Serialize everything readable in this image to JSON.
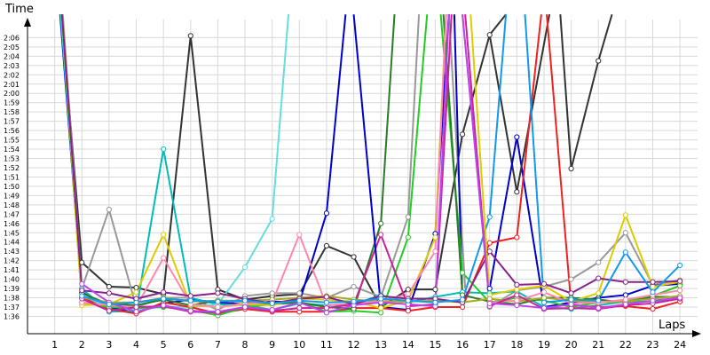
{
  "chart_data": {
    "type": "line",
    "title": "",
    "xlabel": "Laps",
    "ylabel": "Time",
    "x": [
      1,
      2,
      3,
      4,
      5,
      6,
      7,
      8,
      9,
      10,
      11,
      12,
      13,
      14,
      15,
      16,
      17,
      18,
      19,
      20,
      21,
      22,
      23,
      24
    ],
    "xlim": [
      0.0,
      24.2
    ],
    "ylim": [
      95.1,
      128.5
    ],
    "y_tick_labels": [
      "1:36",
      "1:37",
      "1:38",
      "1:39",
      "1:40",
      "1:41",
      "1:42",
      "1:43",
      "1:44",
      "1:45",
      "1:46",
      "1:47",
      "1:48",
      "1:49",
      "1:50",
      "1:51",
      "1:52",
      "1:53",
      "1:54",
      "1:55",
      "1:56",
      "1:57",
      "1:58",
      "1:59",
      "2:00",
      "2:01",
      "2:02",
      "2:03",
      "2:04",
      "2:05",
      "2:06"
    ],
    "y_tick_values": [
      96,
      97,
      98,
      99,
      100,
      101,
      102,
      103,
      104,
      105,
      106,
      107,
      108,
      109,
      110,
      111,
      112,
      113,
      114,
      115,
      116,
      117,
      118,
      119,
      120,
      121,
      122,
      123,
      124,
      125,
      126
    ],
    "x_tick_labels": [
      "1",
      "2",
      "3",
      "4",
      "5",
      "6",
      "7",
      "8",
      "9",
      "10",
      "11",
      "12",
      "13",
      "14",
      "15",
      "16",
      "17",
      "18",
      "19",
      "20",
      "21",
      "22",
      "23",
      "24"
    ],
    "series": [
      {
        "color": "#333333",
        "values": [
          null,
          101.8,
          99.2,
          99.1,
          98.4,
          126.2,
          98.9,
          97.8,
          98.2,
          98.4,
          103.6,
          102.4,
          97.0,
          98.9,
          98.9,
          115.6,
          126.3,
          109.4,
          null,
          111.9,
          123.5,
          null,
          null,
          null
        ]
      },
      {
        "color": "#999999",
        "values": [
          null,
          99.0,
          107.5,
          97.0,
          98.0,
          98.0,
          96.7,
          98.2,
          98.5,
          98.5,
          98.0,
          99.2,
          98.1,
          106.7,
          null,
          null,
          97.0,
          98.8,
          99.2,
          100.0,
          101.8,
          105.0,
          99.4,
          99.9
        ]
      },
      {
        "color": "#0000cc",
        "values": [
          null,
          98.6,
          97.0,
          96.4,
          97.4,
          97.8,
          97.5,
          97.3,
          97.6,
          97.5,
          107.1,
          null,
          97.0,
          96.7,
          104.9,
          null,
          99.0,
          115.3,
          97.0,
          97.5,
          98.0,
          98.3,
          99.3,
          99.5
        ]
      },
      {
        "color": "#00bbbb",
        "values": [
          null,
          99.0,
          96.5,
          96.6,
          114.0,
          98.0,
          97.3,
          97.2,
          96.7,
          97.4,
          97.2,
          97.3,
          98.3,
          97.5,
          98.1,
          98.6,
          98.5,
          98.7,
          97.0,
          96.8,
          97.2,
          97.6,
          97.6,
          98.0
        ]
      },
      {
        "color": "#66dddd",
        "values": [
          null,
          98.0,
          97.1,
          96.8,
          97.0,
          97.0,
          97.3,
          101.3,
          106.5,
          null,
          null,
          null,
          null,
          null,
          null,
          null,
          null,
          null,
          null,
          null,
          null,
          null,
          null,
          null
        ]
      },
      {
        "color": "#ee2222",
        "values": [
          null,
          98.0,
          96.8,
          96.3,
          97.5,
          97.0,
          96.3,
          96.8,
          96.5,
          96.5,
          96.5,
          96.9,
          96.9,
          96.6,
          97.0,
          97.0,
          103.9,
          104.5,
          null,
          97.2,
          97.0,
          97.1,
          96.8,
          97.6
        ]
      },
      {
        "color": "#22cc22",
        "values": [
          null,
          97.5,
          97.0,
          96.9,
          97.0,
          96.7,
          96.1,
          97.0,
          97.3,
          97.6,
          96.5,
          96.6,
          96.4,
          104.5,
          null,
          100.7,
          97.5,
          98.0,
          97.7,
          97.0,
          97.5,
          97.7,
          98.2,
          99.3
        ]
      },
      {
        "color": "#2a7a2a",
        "values": [
          null,
          98.5,
          97.3,
          97.2,
          97.8,
          97.2,
          97.7,
          97.6,
          97.3,
          97.5,
          97.0,
          96.8,
          106.0,
          null,
          null,
          98.3,
          97.6,
          97.3,
          98.0,
          98.0,
          97.8,
          97.5,
          98.1,
          98.1
        ]
      },
      {
        "color": "#ddcc00",
        "values": [
          null,
          97.2,
          97.3,
          98.6,
          104.8,
          97.2,
          97.0,
          97.3,
          97.2,
          97.9,
          97.8,
          97.6,
          96.9,
          97.7,
          104.5,
          null,
          98.3,
          98.9,
          99.3,
          97.6,
          98.5,
          106.9,
          99.2,
          99.7
        ]
      },
      {
        "color": "#aaaa22",
        "values": [
          null,
          98.0,
          97.5,
          97.5,
          98.0,
          97.6,
          97.7,
          97.7,
          97.8,
          98.0,
          98.2,
          97.8,
          97.6,
          97.6,
          97.7,
          97.5,
          97.9,
          97.6,
          98.0,
          97.7,
          97.5,
          97.6,
          97.9,
          98.2
        ]
      },
      {
        "color": "#ff88aa",
        "values": [
          null,
          97.5,
          97.2,
          97.0,
          102.3,
          97.3,
          97.0,
          97.4,
          97.5,
          104.8,
          97.2,
          97.4,
          97.6,
          98.4,
          103.0,
          null,
          97.5,
          97.7,
          98.6,
          97.4,
          97.5,
          97.8,
          98.3,
          98.8
        ]
      },
      {
        "color": "#882288",
        "values": [
          null,
          98.8,
          98.5,
          97.9,
          98.6,
          98.2,
          98.5,
          97.9,
          97.4,
          97.9,
          98.1,
          97.3,
          98.2,
          97.9,
          97.9,
          97.5,
          103.0,
          99.4,
          99.5,
          98.5,
          100.1,
          99.7,
          99.7,
          99.8
        ]
      },
      {
        "color": "#cc2299",
        "values": [
          null,
          97.9,
          96.6,
          97.0,
          97.1,
          96.5,
          96.4,
          97.0,
          96.6,
          96.9,
          96.9,
          97.3,
          104.8,
          97.1,
          97.3,
          null,
          97.1,
          98.3,
          96.8,
          96.9,
          96.8,
          97.2,
          97.4,
          97.9
        ]
      },
      {
        "color": "#bb44ee",
        "values": [
          null,
          99.5,
          97.5,
          96.5,
          97.2,
          96.6,
          96.5,
          97.0,
          96.7,
          97.5,
          96.4,
          97.2,
          97.5,
          97.3,
          97.1,
          null,
          97.4,
          97.2,
          96.9,
          97.3,
          96.9,
          97.3,
          97.7,
          98.0
        ]
      },
      {
        "color": "#1199ee",
        "values": [
          null,
          98.2,
          97.3,
          97.5,
          97.9,
          97.7,
          97.6,
          97.7,
          97.4,
          97.7,
          97.5,
          97.6,
          97.9,
          97.7,
          97.5,
          97.8,
          106.7,
          null,
          97.5,
          97.8,
          97.7,
          102.9,
          98.6,
          101.5
        ]
      }
    ],
    "offscreen_segments": [
      {
        "series": 0,
        "from_x": 1.25,
        "to_x": 2,
        "to_value": 101.8
      },
      {
        "series": 1,
        "from_x": 1.3,
        "to_x": 2,
        "to_value": 99.0
      },
      {
        "series": 2,
        "from_x": 1.2,
        "to_x": 2,
        "to_value": 98.6
      },
      {
        "series": 3,
        "from_x": 1.22,
        "to_x": 2,
        "to_value": 99.0
      },
      {
        "series": 4,
        "from_x": 1.24,
        "to_x": 2,
        "to_value": 98.0
      },
      {
        "series": 6,
        "from_x": 1.26,
        "to_x": 2,
        "to_value": 97.5
      },
      {
        "series": 8,
        "from_x": 1.28,
        "to_x": 2,
        "to_value": 97.2
      },
      {
        "series": 11,
        "from_x": 1.27,
        "to_x": 2,
        "to_value": 98.8
      },
      {
        "series": 0,
        "from_x": 17,
        "from_value": 126.3,
        "to_x": 17.6,
        "to_value": 128.5
      },
      {
        "series": 0,
        "from_x": 21,
        "from_value": 123.5,
        "to_x": 21.5,
        "to_value": 128.5
      },
      {
        "series": 0,
        "from_x": 18,
        "from_value": 109.4,
        "to_x": 19.2,
        "to_value": 128.5
      },
      {
        "series": 0,
        "from_x": 19.6,
        "from_value": 128.5,
        "to_x": 20,
        "to_value": 111.9
      },
      {
        "series": 1,
        "from_x": 14,
        "from_value": 106.7,
        "to_x": 14.4,
        "to_value": 128.5
      },
      {
        "series": 1,
        "from_x": 15.5,
        "from_value": 128.5,
        "to_x": 16.1,
        "to_value": 99.0
      },
      {
        "series": 2,
        "from_x": 11,
        "from_value": 107.1,
        "to_x": 11.7,
        "to_value": 128.5
      },
      {
        "series": 2,
        "from_x": 12.0,
        "from_value": 128.5,
        "to_x": 13,
        "to_value": 97.0
      },
      {
        "series": 2,
        "from_x": 15,
        "from_value": 104.9,
        "to_x": 15.5,
        "to_value": 128.5
      },
      {
        "series": 2,
        "from_x": 15.7,
        "from_value": 128.5,
        "to_x": 16,
        "to_value": 97.5
      },
      {
        "series": 4,
        "from_x": 9,
        "from_value": 106.5,
        "to_x": 9.6,
        "to_value": 128.5
      },
      {
        "series": 5,
        "from_x": 18,
        "from_value": 104.5,
        "to_x": 18.9,
        "to_value": 128.5
      },
      {
        "series": 5,
        "from_x": 19.1,
        "from_value": 128.5,
        "to_x": 20,
        "to_value": 97.2
      },
      {
        "series": 6,
        "from_x": 14,
        "from_value": 104.5,
        "to_x": 14.7,
        "to_value": 128.5
      },
      {
        "series": 6,
        "from_x": 15.2,
        "from_value": 128.5,
        "to_x": 16,
        "to_value": 100.7
      },
      {
        "series": 7,
        "from_x": 13,
        "from_value": 106.0,
        "to_x": 13.5,
        "to_value": 128.5
      },
      {
        "series": 7,
        "from_x": 15.3,
        "from_value": 128.5,
        "to_x": 16,
        "to_value": 98.3
      },
      {
        "series": 8,
        "from_x": 15,
        "from_value": 104.5,
        "to_x": 15.4,
        "to_value": 128.5
      },
      {
        "series": 8,
        "from_x": 16.3,
        "from_value": 128.5,
        "to_x": 17,
        "to_value": 98.3
      },
      {
        "series": 10,
        "from_x": 15,
        "from_value": 103.0,
        "to_x": 15.4,
        "to_value": 128.5
      },
      {
        "series": 10,
        "from_x": 16.0,
        "from_value": 128.5,
        "to_x": 17,
        "to_value": 97.5
      },
      {
        "series": 12,
        "from_x": 15,
        "from_value": 97.3,
        "to_x": 15.6,
        "to_value": 128.5
      },
      {
        "series": 12,
        "from_x": 16.1,
        "from_value": 128.5,
        "to_x": 17,
        "to_value": 97.1
      },
      {
        "series": 13,
        "from_x": 15,
        "from_value": 97.1,
        "to_x": 15.5,
        "to_value": 128.5
      },
      {
        "series": 13,
        "from_x": 16.0,
        "from_value": 128.5,
        "to_x": 17,
        "to_value": 97.4
      },
      {
        "series": 14,
        "from_x": 17,
        "from_value": 106.7,
        "to_x": 17.6,
        "to_value": 128.5
      },
      {
        "series": 14,
        "from_x": 18.3,
        "from_value": 128.5,
        "to_x": 19,
        "to_value": 97.5
      }
    ],
    "grid": true,
    "legend": "none"
  }
}
